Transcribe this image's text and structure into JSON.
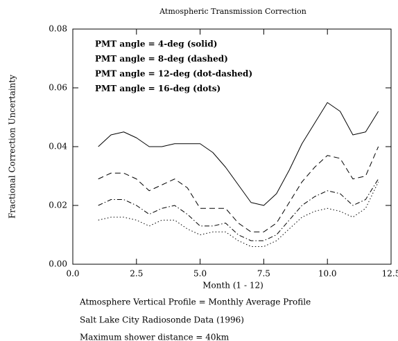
{
  "chart_data": {
    "type": "line",
    "title": "Atmospheric Transmission Correction",
    "x_label": "Month (1 - 12)",
    "y_label": "Fractional Correction Uncertainty",
    "annotations": [
      "Atmosphere Vertical Profile = Monthly Average Profile",
      "Salt Lake City Radiosonde Data (1996)",
      "Maximum shower distance = 40km"
    ],
    "x": [
      1,
      1.5,
      2,
      2.5,
      3,
      3.5,
      4,
      4.5,
      5,
      5.5,
      6,
      6.5,
      7,
      7.5,
      8,
      8.5,
      9,
      9.5,
      10,
      10.5,
      11,
      11.5,
      12
    ],
    "series": [
      {
        "name": "PMT angle = 4-deg (solid)",
        "color": "#000000",
        "dash": "solid",
        "values": [
          0.04,
          0.044,
          0.045,
          0.043,
          0.04,
          0.04,
          0.041,
          0.041,
          0.041,
          0.038,
          0.033,
          0.027,
          0.021,
          0.02,
          0.024,
          0.032,
          0.041,
          0.048,
          0.055,
          0.052,
          0.044,
          0.045,
          0.052
        ]
      },
      {
        "name": "PMT angle = 8-deg (dashed)",
        "color": "#000000",
        "dash": "dashed",
        "values": [
          0.029,
          0.031,
          0.031,
          0.029,
          0.025,
          0.027,
          0.029,
          0.026,
          0.019,
          0.019,
          0.019,
          0.014,
          0.011,
          0.011,
          0.014,
          0.021,
          0.028,
          0.033,
          0.037,
          0.036,
          0.029,
          0.03,
          0.04
        ]
      },
      {
        "name": "PMT angle = 12-deg (dot-dashed)",
        "color": "#000000",
        "dash": "dot-dashed",
        "values": [
          0.02,
          0.022,
          0.022,
          0.02,
          0.017,
          0.019,
          0.02,
          0.017,
          0.013,
          0.013,
          0.014,
          0.01,
          0.008,
          0.008,
          0.01,
          0.015,
          0.02,
          0.023,
          0.025,
          0.024,
          0.02,
          0.022,
          0.029
        ]
      },
      {
        "name": "PMT angle = 16-deg (dots)",
        "color": "#000000",
        "dash": "dots",
        "values": [
          0.015,
          0.016,
          0.016,
          0.015,
          0.013,
          0.015,
          0.015,
          0.012,
          0.01,
          0.011,
          0.011,
          0.008,
          0.006,
          0.006,
          0.008,
          0.012,
          0.016,
          0.018,
          0.019,
          0.018,
          0.016,
          0.019,
          0.028
        ]
      }
    ],
    "xlim": [
      0,
      12.5
    ],
    "ylim": [
      0,
      0.08
    ],
    "xticks": [
      {
        "value": 0,
        "label": "0.0"
      },
      2.5,
      {
        "value": 5,
        "label": "5.0"
      },
      7.5,
      {
        "value": 10,
        "label": "10.0"
      },
      12.5
    ],
    "yticks": [
      {
        "value": 0,
        "label": "0.00"
      },
      {
        "value": 0.02,
        "label": "0.02"
      },
      {
        "value": 0.04,
        "label": "0.04"
      },
      {
        "value": 0.06,
        "label": "0.06"
      },
      {
        "value": 0.08,
        "label": "0.08"
      }
    ],
    "grid": false
  }
}
